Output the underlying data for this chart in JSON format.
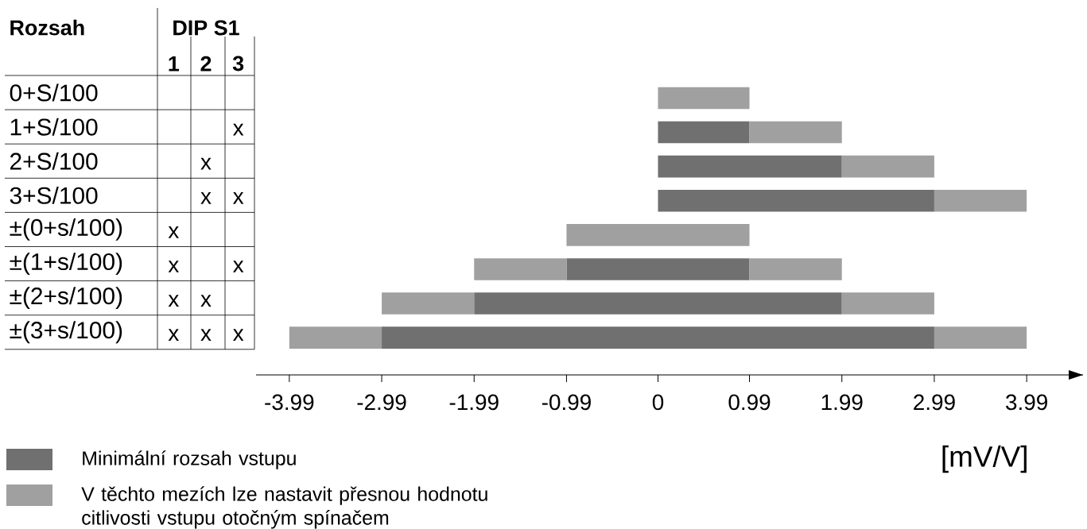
{
  "chart_data": [
    {
      "type": "heatmap",
      "title": "DIP S1",
      "ylabel": "Rozsah",
      "categories": [
        "1",
        "2",
        "3"
      ],
      "y_categories": [
        "0+S/100",
        "1+S/100",
        "2+S/100",
        "3+S/100",
        "±(0+s/100)",
        "±(1+s/100)",
        "±(2+s/100)",
        "±(3+s/100)"
      ],
      "cells": [
        [
          null,
          null,
          null
        ],
        [
          null,
          null,
          "x"
        ],
        [
          null,
          "x",
          null
        ],
        [
          null,
          "x",
          "x"
        ],
        [
          "x",
          null,
          null
        ],
        [
          "x",
          null,
          "x"
        ],
        [
          "x",
          "x",
          null
        ],
        [
          "x",
          "x",
          "x"
        ]
      ]
    },
    {
      "type": "bar",
      "orientation": "horizontal",
      "xlabel": "[mV/V]",
      "tick_labels": "x",
      "legend": "bottom left",
      "categories": [
        null,
        null,
        null,
        null,
        null,
        null,
        null,
        null
      ],
      "xlim": [
        -4.35,
        4.6
      ],
      "xticks": [
        -3.99,
        -2.99,
        -1.99,
        -0.99,
        0,
        0.99,
        1.99,
        2.99,
        3.99
      ],
      "series": [
        {
          "name": "Minimální rozsah vstupu",
          "color": "#707070",
          "base": [
            null,
            0,
            0,
            0,
            null,
            -0.99,
            -1.99,
            -2.99
          ],
          "values": [
            null,
            0.99,
            1.99,
            2.99,
            null,
            1.98,
            3.98,
            5.98
          ]
        },
        {
          "name": "V těchto mezích lze nastavit přesnou hodnotu citlivosti vstupu otočným spínačem",
          "color": "#a0a0a0",
          "base": [
            0,
            0.99,
            1.99,
            2.99,
            -0.99,
            0.99,
            1.99,
            2.99
          ],
          "values": [
            0.99,
            1,
            1,
            1,
            1.98,
            1,
            1,
            1
          ]
        },
        {
          "color": "#a0a0a0",
          "base": [
            null,
            null,
            null,
            null,
            null,
            -1.99,
            -2.99,
            -3.99
          ],
          "values": [
            null,
            null,
            null,
            null,
            null,
            1,
            1,
            1
          ]
        }
      ]
    }
  ]
}
